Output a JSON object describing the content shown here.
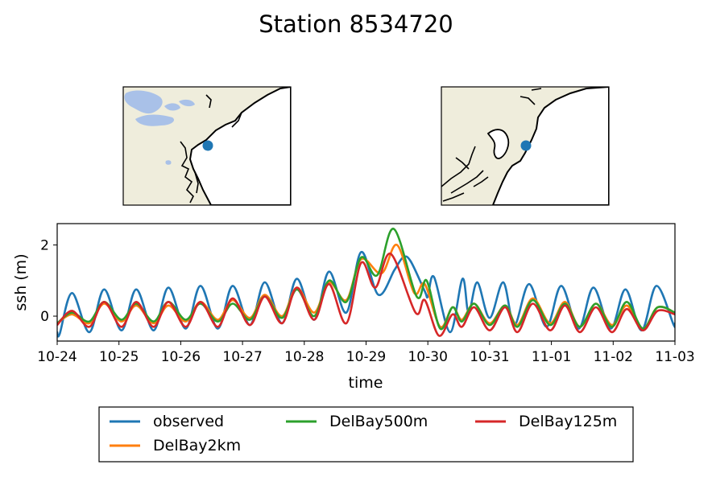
{
  "title": "Station 8534720",
  "chart_data": {
    "type": "line",
    "title": "Station 8534720",
    "xlabel": "time",
    "ylabel": "ssh (m)",
    "x_ticks": [
      "10-24",
      "10-25",
      "10-26",
      "10-27",
      "10-28",
      "10-29",
      "10-30",
      "10-31",
      "11-01",
      "11-02",
      "11-03"
    ],
    "y_ticks": [
      0,
      2
    ],
    "xlim": [
      "10-24",
      "11-03"
    ],
    "ylim": [
      -0.7,
      2.6
    ],
    "grid": false,
    "legend_position": "bottom-center",
    "series": [
      {
        "name": "observed",
        "color": "#1f77b4",
        "x": [
          0.0,
          0.04,
          0.24,
          0.52,
          0.76,
          1.04,
          1.28,
          1.56,
          1.8,
          2.08,
          2.32,
          2.6,
          2.84,
          3.12,
          3.36,
          3.64,
          3.88,
          4.16,
          4.4,
          4.68,
          4.92,
          5.2,
          5.46,
          5.6,
          5.72,
          5.95,
          6.0,
          6.1,
          6.36,
          6.56,
          6.66,
          6.8,
          7.0,
          7.22,
          7.4,
          7.64,
          7.92,
          8.16,
          8.44,
          8.68,
          8.96,
          9.2,
          9.46,
          9.7,
          9.98,
          10.0
        ],
        "y": [
          -0.45,
          -0.5,
          0.65,
          -0.45,
          0.75,
          -0.4,
          0.75,
          -0.4,
          0.8,
          -0.35,
          0.85,
          -0.35,
          0.85,
          -0.25,
          0.95,
          -0.2,
          1.05,
          -0.1,
          1.25,
          0.1,
          1.8,
          0.6,
          1.3,
          1.65,
          1.55,
          0.7,
          0.55,
          1.1,
          -0.45,
          1.05,
          0.1,
          0.95,
          -0.05,
          0.95,
          -0.25,
          0.9,
          -0.3,
          0.85,
          -0.35,
          0.8,
          -0.35,
          0.75,
          -0.4,
          0.85,
          -0.25,
          -0.2
        ]
      },
      {
        "name": "DelBay2km",
        "color": "#ff7f0e",
        "x": [
          0.0,
          0.24,
          0.52,
          0.76,
          1.04,
          1.28,
          1.56,
          1.8,
          2.08,
          2.32,
          2.6,
          2.84,
          3.12,
          3.36,
          3.64,
          3.88,
          4.16,
          4.4,
          4.68,
          4.92,
          5.25,
          5.5,
          5.78,
          5.95,
          6.2,
          6.4,
          6.55,
          6.75,
          7.0,
          7.25,
          7.45,
          7.7,
          7.98,
          8.22,
          8.46,
          8.72,
          8.98,
          9.22,
          9.48,
          9.72,
          10.0
        ],
        "y": [
          -0.2,
          0.05,
          -0.2,
          0.35,
          -0.15,
          0.3,
          -0.2,
          0.3,
          -0.15,
          0.4,
          -0.1,
          0.45,
          -0.05,
          0.6,
          0.0,
          0.8,
          0.1,
          0.95,
          0.45,
          1.6,
          1.2,
          2.0,
          0.65,
          0.9,
          -0.3,
          0.25,
          -0.1,
          0.35,
          -0.2,
          0.3,
          -0.25,
          0.5,
          -0.2,
          0.4,
          -0.3,
          0.35,
          -0.25,
          0.3,
          -0.35,
          0.25,
          0.1
        ]
      },
      {
        "name": "DelBay500m",
        "color": "#2ca02c",
        "x": [
          0.0,
          0.24,
          0.52,
          0.76,
          1.04,
          1.28,
          1.56,
          1.8,
          2.08,
          2.32,
          2.6,
          2.84,
          3.12,
          3.36,
          3.64,
          3.88,
          4.16,
          4.4,
          4.68,
          4.92,
          5.18,
          5.45,
          5.82,
          5.98,
          6.2,
          6.4,
          6.55,
          6.75,
          7.0,
          7.25,
          7.45,
          7.7,
          7.98,
          8.22,
          8.46,
          8.72,
          8.98,
          9.22,
          9.48,
          9.72,
          10.0
        ],
        "y": [
          -0.2,
          0.1,
          -0.15,
          0.4,
          -0.1,
          0.35,
          -0.15,
          0.4,
          -0.1,
          0.35,
          -0.15,
          0.35,
          -0.1,
          0.55,
          -0.05,
          0.75,
          0.0,
          1.0,
          0.4,
          1.65,
          1.15,
          2.45,
          0.55,
          1.0,
          -0.35,
          0.25,
          -0.15,
          0.35,
          -0.25,
          0.3,
          -0.3,
          0.45,
          -0.25,
          0.35,
          -0.3,
          0.35,
          -0.3,
          0.4,
          -0.35,
          0.25,
          0.1
        ]
      },
      {
        "name": "DelBay125m",
        "color": "#d62728",
        "x": [
          0.0,
          0.24,
          0.52,
          0.76,
          1.04,
          1.28,
          1.56,
          1.8,
          2.08,
          2.32,
          2.6,
          2.84,
          3.12,
          3.36,
          3.64,
          3.88,
          4.16,
          4.4,
          4.68,
          4.92,
          5.15,
          5.4,
          5.8,
          5.95,
          6.18,
          6.4,
          6.55,
          6.75,
          7.0,
          7.25,
          7.45,
          7.7,
          7.98,
          8.22,
          8.46,
          8.72,
          8.98,
          9.22,
          9.48,
          9.72,
          10.0
        ],
        "y": [
          -0.25,
          0.15,
          -0.3,
          0.4,
          -0.3,
          0.4,
          -0.3,
          0.4,
          -0.3,
          0.4,
          -0.3,
          0.5,
          -0.25,
          0.55,
          -0.2,
          0.8,
          -0.1,
          0.9,
          -0.2,
          1.5,
          0.8,
          1.75,
          0.1,
          0.45,
          -0.55,
          0.05,
          -0.3,
          0.25,
          -0.4,
          0.25,
          -0.45,
          0.35,
          -0.4,
          0.3,
          -0.45,
          0.25,
          -0.45,
          0.2,
          -0.4,
          0.15,
          0.05
        ]
      }
    ]
  },
  "legend": {
    "items": [
      {
        "label": "observed",
        "color": "#1f77b4"
      },
      {
        "label": "DelBay500m",
        "color": "#2ca02c"
      },
      {
        "label": "DelBay125m",
        "color": "#d62728"
      },
      {
        "label": "DelBay2km",
        "color": "#ff7f0e"
      }
    ]
  },
  "colors": {
    "land": "#efeddc",
    "water": "#ffffff",
    "lakes": "#a9c1e8",
    "coast": "#000000",
    "station": "#1f77b4"
  }
}
